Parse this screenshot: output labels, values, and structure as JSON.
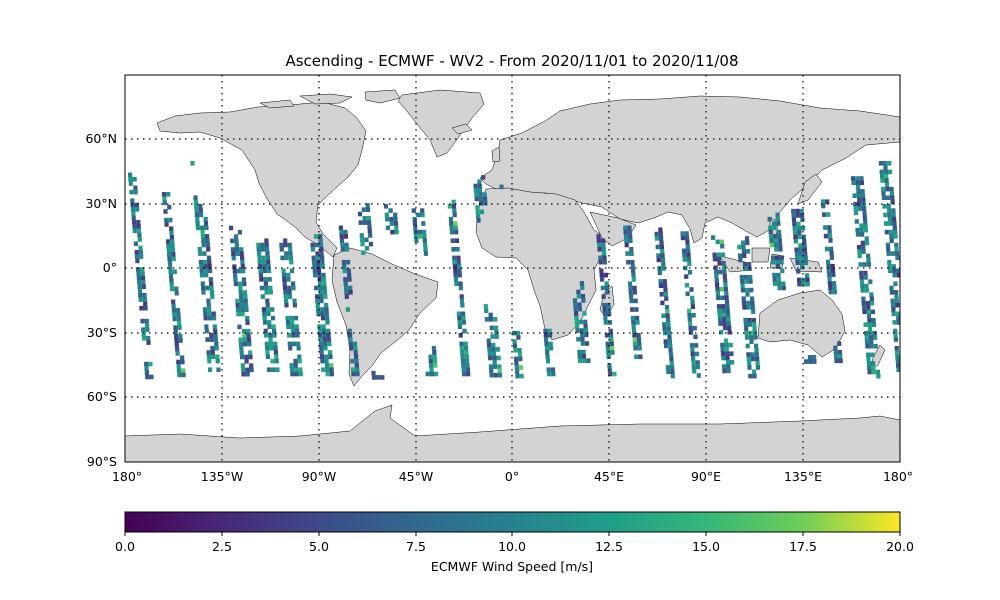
{
  "title": "Ascending - ECMWF - WV2 - From 2020/11/01 to 2020/11/08",
  "map": {
    "projection": "equirectangular",
    "lon_range": [
      -180,
      180
    ],
    "lat_range": [
      -90,
      90
    ],
    "xticks": [
      {
        "value": -180,
        "label": "180°"
      },
      {
        "value": -135,
        "label": "135°W"
      },
      {
        "value": -90,
        "label": "90°W"
      },
      {
        "value": -45,
        "label": "45°W"
      },
      {
        "value": 0,
        "label": "0°"
      },
      {
        "value": 45,
        "label": "45°E"
      },
      {
        "value": 90,
        "label": "90°E"
      },
      {
        "value": 135,
        "label": "135°E"
      },
      {
        "value": 180,
        "label": "180°"
      }
    ],
    "yticks": [
      {
        "value": 60,
        "label": "60°N"
      },
      {
        "value": 30,
        "label": "30°N"
      },
      {
        "value": 0,
        "label": "0°"
      },
      {
        "value": -30,
        "label": "30°S"
      },
      {
        "value": -60,
        "label": "60°S"
      },
      {
        "value": -90,
        "label": "90°S"
      }
    ],
    "gridlines": "dotted",
    "land_color": "#d3d3d3",
    "coast_color": "#000000"
  },
  "colorbar": {
    "label": "ECMWF Wind Speed [m/s]",
    "range": [
      0,
      20
    ],
    "colormap": "viridis",
    "ticks": [
      {
        "value": 0,
        "label": "0.0"
      },
      {
        "value": 2.5,
        "label": "2.5"
      },
      {
        "value": 5,
        "label": "5.0"
      },
      {
        "value": 7.5,
        "label": "7.5"
      },
      {
        "value": 10,
        "label": "10.0"
      },
      {
        "value": 12.5,
        "label": "12.5"
      },
      {
        "value": 15,
        "label": "15.0"
      },
      {
        "value": 17.5,
        "label": "17.5"
      },
      {
        "value": 20,
        "label": "20.0"
      }
    ]
  },
  "swaths": {
    "lat_range": [
      -50,
      50
    ],
    "typical_wind_range": [
      3,
      13
    ]
  }
}
